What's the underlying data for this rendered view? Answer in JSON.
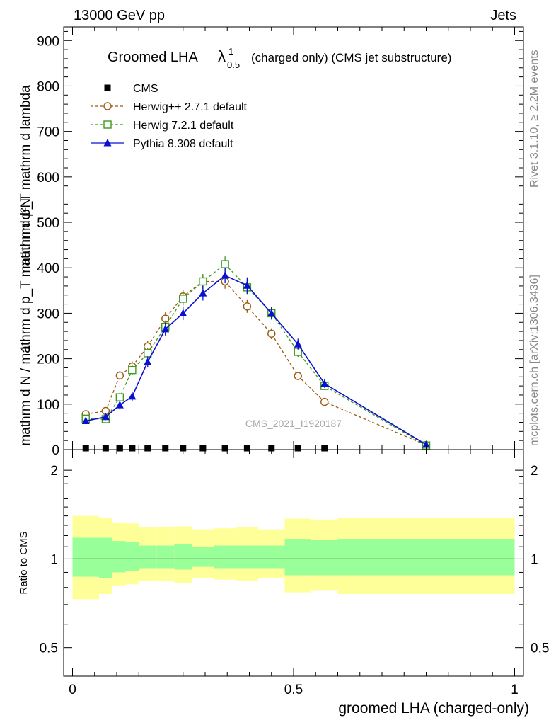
{
  "header": {
    "left": "13000 GeV pp",
    "right": "Jets"
  },
  "side_labels": {
    "rivet": "Rivet 3.1.10, ≥ 2.2M events",
    "mcplots": "mcplots.cern.ch [arXiv:1306.3436]"
  },
  "title": {
    "main": "Groomed LHA",
    "lambda": "λ",
    "sup": "1",
    "sub": "0.5",
    "rest": "(charged only) (CMS jet substructure)"
  },
  "watermark": "CMS_2021_I1920187",
  "colors": {
    "cms": "#000000",
    "herwig_pp": "#9c5a12",
    "herwig7": "#3c9a1e",
    "pythia": "#0a10d0",
    "band_outer": "#ffff99",
    "band_inner": "#99ff99"
  },
  "chart_data": [
    {
      "type": "line",
      "ylabel_numerator": "1",
      "ylabel_denominator": "mathrm d N / mathrm d p_T mathrm d p_T mathrm d lambda",
      "ylabel_rhs": "mathrm d²N",
      "ylim": [
        0,
        930
      ],
      "xlim": [
        -0.02,
        1.02
      ],
      "y_ticks": [
        0,
        100,
        200,
        300,
        400,
        500,
        600,
        700,
        800,
        900
      ],
      "legend_position": "top-left",
      "series": [
        {
          "name": "CMS",
          "marker": "square",
          "x": [
            0.03,
            0.075,
            0.107,
            0.135,
            0.17,
            0.21,
            0.25,
            0.295,
            0.345,
            0.395,
            0.45,
            0.51,
            0.57
          ],
          "y": [
            2,
            2,
            2,
            2,
            2,
            2,
            2,
            2,
            2,
            2,
            2,
            2,
            2
          ]
        },
        {
          "name": "Herwig++ 2.7.1 default",
          "marker": "circle",
          "x": [
            0.03,
            0.075,
            0.107,
            0.135,
            0.17,
            0.21,
            0.25,
            0.295,
            0.345,
            0.395,
            0.45,
            0.51,
            0.57,
            0.8
          ],
          "y": [
            78,
            85,
            163,
            183,
            227,
            288,
            337,
            370,
            370,
            315,
            255,
            162,
            105,
            10
          ],
          "err": [
            6,
            7,
            10,
            11,
            12,
            14,
            15,
            16,
            16,
            14,
            12,
            9,
            7,
            2
          ]
        },
        {
          "name": "Herwig 7.2.1 default",
          "marker": "open-square",
          "x": [
            0.03,
            0.075,
            0.107,
            0.135,
            0.17,
            0.21,
            0.25,
            0.295,
            0.345,
            0.395,
            0.45,
            0.51,
            0.57,
            0.8
          ],
          "y": [
            68,
            67,
            115,
            175,
            212,
            270,
            332,
            370,
            408,
            357,
            300,
            215,
            140,
            9
          ],
          "err": [
            6,
            7,
            10,
            11,
            12,
            14,
            15,
            16,
            17,
            15,
            13,
            11,
            8,
            2
          ]
        },
        {
          "name": "Pythia 8.308 default",
          "marker": "triangle",
          "x": [
            0.03,
            0.075,
            0.107,
            0.135,
            0.17,
            0.21,
            0.25,
            0.295,
            0.345,
            0.395,
            0.45,
            0.51,
            0.57,
            0.8
          ],
          "y": [
            63,
            72,
            98,
            117,
            193,
            265,
            300,
            344,
            383,
            361,
            300,
            232,
            145,
            11
          ],
          "err": [
            5,
            7,
            10,
            11,
            12,
            14,
            15,
            16,
            17,
            18,
            14,
            12,
            9,
            2
          ]
        }
      ]
    },
    {
      "type": "area",
      "ylabel": "Ratio to CMS",
      "scale": "log",
      "ylim": [
        0.4,
        2.35
      ],
      "y_ticks": [
        0.5,
        1,
        2
      ],
      "x_ticks": [
        0,
        0.5,
        1
      ],
      "xlabel": "groomed LHA (charged-only)",
      "bins": [
        {
          "x0": 0.0,
          "x1": 0.06,
          "outer": [
            0.73,
            1.4
          ],
          "inner": [
            0.87,
            1.18
          ]
        },
        {
          "x0": 0.06,
          "x1": 0.09,
          "outer": [
            0.76,
            1.38
          ],
          "inner": [
            0.86,
            1.18
          ]
        },
        {
          "x0": 0.09,
          "x1": 0.12,
          "outer": [
            0.81,
            1.33
          ],
          "inner": [
            0.9,
            1.15
          ]
        },
        {
          "x0": 0.12,
          "x1": 0.15,
          "outer": [
            0.82,
            1.32
          ],
          "inner": [
            0.91,
            1.14
          ]
        },
        {
          "x0": 0.15,
          "x1": 0.19,
          "outer": [
            0.84,
            1.28
          ],
          "inner": [
            0.93,
            1.11
          ]
        },
        {
          "x0": 0.19,
          "x1": 0.23,
          "outer": [
            0.84,
            1.28
          ],
          "inner": [
            0.93,
            1.11
          ]
        },
        {
          "x0": 0.23,
          "x1": 0.27,
          "outer": [
            0.83,
            1.29
          ],
          "inner": [
            0.92,
            1.12
          ]
        },
        {
          "x0": 0.27,
          "x1": 0.32,
          "outer": [
            0.86,
            1.26
          ],
          "inner": [
            0.94,
            1.1
          ]
        },
        {
          "x0": 0.32,
          "x1": 0.37,
          "outer": [
            0.85,
            1.27
          ],
          "inner": [
            0.93,
            1.11
          ]
        },
        {
          "x0": 0.37,
          "x1": 0.42,
          "outer": [
            0.84,
            1.28
          ],
          "inner": [
            0.93,
            1.11
          ]
        },
        {
          "x0": 0.42,
          "x1": 0.48,
          "outer": [
            0.86,
            1.26
          ],
          "inner": [
            0.93,
            1.11
          ]
        },
        {
          "x0": 0.48,
          "x1": 0.54,
          "outer": [
            0.77,
            1.37
          ],
          "inner": [
            0.88,
            1.17
          ]
        },
        {
          "x0": 0.54,
          "x1": 0.6,
          "outer": [
            0.78,
            1.36
          ],
          "inner": [
            0.88,
            1.16
          ]
        },
        {
          "x0": 0.6,
          "x1": 1.0,
          "outer": [
            0.76,
            1.38
          ],
          "inner": [
            0.88,
            1.17
          ]
        }
      ]
    }
  ]
}
